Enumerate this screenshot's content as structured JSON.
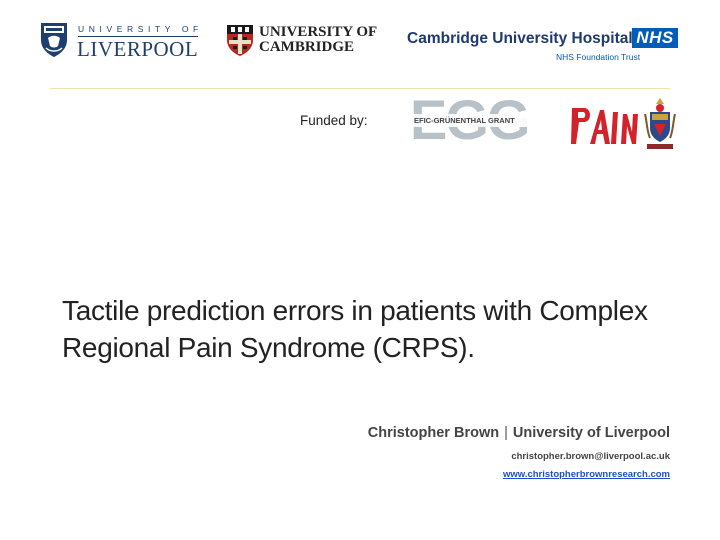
{
  "logos": {
    "liverpool": {
      "top_text": "UNIVERSITY OF",
      "name": "LIVERPOOL"
    },
    "cambridge": {
      "line1": "UNIVERSITY OF",
      "line2": "CAMBRIDGE"
    },
    "cuh": {
      "name": "Cambridge University Hospitals",
      "badge": "NHS",
      "trust": "NHS Foundation Trust"
    },
    "egg": {
      "letters": "EGG",
      "grant": "EFIC-GRÜNENTHAL GRANT"
    },
    "pain": {
      "text": "PAIN"
    }
  },
  "funded_by": "Funded by:",
  "title": "Tactile prediction errors in patients with Complex Regional Pain Syndrome (CRPS).",
  "presenter": {
    "name": "Christopher Brown",
    "separator": "|",
    "affiliation": "University of Liverpool",
    "email": "christopher.brown@liverpool.ac.uk",
    "website": "www.christopherbrownresearch.com"
  },
  "colors": {
    "liverpool_blue": "#1f3f6f",
    "nhs_blue": "#005eb8",
    "link_blue": "#1f4fd0",
    "pain_red": "#d2222a"
  }
}
